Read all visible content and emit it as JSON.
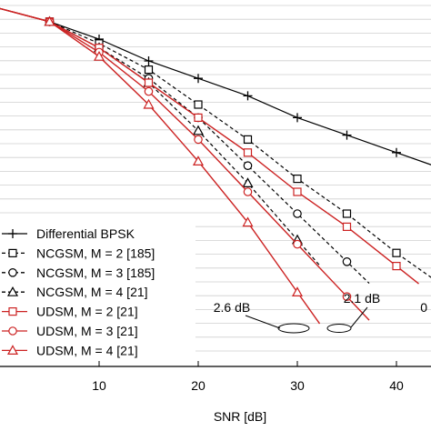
{
  "chart_data": {
    "type": "line",
    "xlabel": "SNR [dB]",
    "xticks": [
      10,
      20,
      30,
      40
    ],
    "xlim": [
      0,
      45
    ],
    "ylim": [
      0,
      1
    ],
    "y_scale": "log",
    "grid": "horizontal minor",
    "legend_position": "bottom-left",
    "series": [
      {
        "name": "Differential BPSK",
        "style": "solid",
        "color": "#000000",
        "marker": "plus",
        "x": [
          0,
          5,
          10,
          15,
          20,
          25,
          30,
          35,
          40,
          45
        ],
        "y": [
          0.82,
          0.79,
          0.75,
          0.7,
          0.66,
          0.62,
          0.57,
          0.53,
          0.49,
          0.45
        ]
      },
      {
        "name": "NCGSM, M = 2 [185]",
        "style": "dashed",
        "color": "#000000",
        "marker": "square",
        "x": [
          0,
          5,
          10,
          15,
          20,
          25,
          30,
          35,
          40,
          45
        ],
        "y": [
          0.82,
          0.79,
          0.74,
          0.68,
          0.6,
          0.52,
          0.43,
          0.35,
          0.26,
          0.18
        ]
      },
      {
        "name": "NCGSM, M = 3 [185]",
        "style": "dashed",
        "color": "#000000",
        "marker": "circle",
        "x": [
          0,
          5,
          10,
          15,
          20,
          25,
          30,
          35
        ],
        "y": [
          0.82,
          0.79,
          0.73,
          0.66,
          0.57,
          0.46,
          0.35,
          0.24
        ]
      },
      {
        "name": "NCGSM, M = 4 [21]",
        "style": "dashed",
        "color": "#000000",
        "marker": "triangle",
        "x": [
          0,
          5,
          10,
          15,
          20,
          25,
          30
        ],
        "y": [
          0.82,
          0.79,
          0.73,
          0.65,
          0.54,
          0.42,
          0.29
        ]
      },
      {
        "name": "UDSM, M = 2 [21]",
        "style": "solid",
        "color": "#cc2222",
        "marker": "square",
        "x": [
          0,
          5,
          10,
          15,
          20,
          25,
          30,
          35,
          40
        ],
        "y": [
          0.82,
          0.79,
          0.73,
          0.65,
          0.57,
          0.49,
          0.4,
          0.32,
          0.23
        ]
      },
      {
        "name": "UDSM, M = 3 [21]",
        "style": "solid",
        "color": "#cc2222",
        "marker": "circle",
        "x": [
          0,
          5,
          10,
          15,
          20,
          25,
          30,
          35
        ],
        "y": [
          0.82,
          0.79,
          0.72,
          0.63,
          0.52,
          0.4,
          0.28,
          0.16
        ]
      },
      {
        "name": "UDSM, M = 4 [21]",
        "style": "solid",
        "color": "#cc2222",
        "marker": "triangle",
        "x": [
          0,
          5,
          10,
          15,
          20,
          25,
          30
        ],
        "y": [
          0.82,
          0.79,
          0.71,
          0.6,
          0.47,
          0.33,
          0.17
        ]
      }
    ],
    "annotations": [
      {
        "text": "2.6 dB",
        "x": 27.5,
        "y": 0.25
      },
      {
        "text": "2.1 dB",
        "x": 37.5,
        "y": 0.25
      },
      {
        "text": "0",
        "x": 45,
        "y": 0.25
      }
    ]
  }
}
